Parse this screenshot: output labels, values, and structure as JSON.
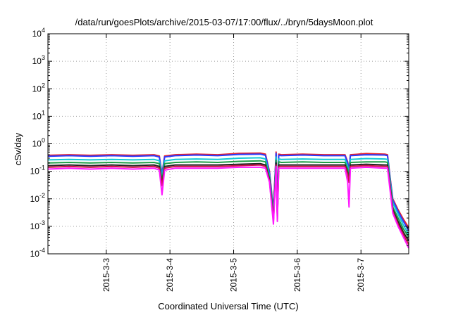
{
  "chart_data": {
    "type": "line",
    "title": "/data/run/goesPlots/archive/2015-03-07/17:00/flux/../bryn/5daysMoon.plot",
    "xlabel": "Coordinated Universal Time (UTC)",
    "ylabel": "cSv/day",
    "yscale": "log",
    "ylim": [
      0.0001,
      10000
    ],
    "y_ticks": [
      {
        "base": "10",
        "exp": "-4",
        "value": 0.0001
      },
      {
        "base": "10",
        "exp": "-3",
        "value": 0.001
      },
      {
        "base": "10",
        "exp": "-2",
        "value": 0.01
      },
      {
        "base": "10",
        "exp": "-1",
        "value": 0.1
      },
      {
        "base": "10",
        "exp": "0",
        "value": 1
      },
      {
        "base": "10",
        "exp": "1",
        "value": 10
      },
      {
        "base": "10",
        "exp": "2",
        "value": 100
      },
      {
        "base": "10",
        "exp": "3",
        "value": 1000
      },
      {
        "base": "10",
        "exp": "4",
        "value": 10000
      }
    ],
    "xlim": [
      "2015-03-02T02:00",
      "2015-03-07T18:00"
    ],
    "x_ticks": [
      {
        "label": "2015-3-3",
        "value": "2015-03-03T00:00"
      },
      {
        "label": "2015-3-4",
        "value": "2015-03-04T00:00"
      },
      {
        "label": "2015-3-5",
        "value": "2015-03-05T00:00"
      },
      {
        "label": "2015-3-6",
        "value": "2015-03-06T00:00"
      },
      {
        "label": "2015-3-7",
        "value": "2015-03-07T00:00"
      }
    ],
    "grid": true,
    "legend": false,
    "x": [
      "2015-03-02T02:00",
      "2015-03-02T10:00",
      "2015-03-02T18:00",
      "2015-03-03T02:00",
      "2015-03-03T10:00",
      "2015-03-03T18:00",
      "2015-03-03T20:00",
      "2015-03-03T21:00",
      "2015-03-03T22:00",
      "2015-03-04T02:00",
      "2015-03-04T10:00",
      "2015-03-04T18:00",
      "2015-03-05T02:00",
      "2015-03-05T10:00",
      "2015-03-05T12:00",
      "2015-03-05T13:30",
      "2015-03-05T15:00",
      "2015-03-05T16:00",
      "2015-03-05T16:30",
      "2015-03-05T17:00",
      "2015-03-05T18:00",
      "2015-03-06T02:00",
      "2015-03-06T10:00",
      "2015-03-06T18:00",
      "2015-03-06T19:00",
      "2015-03-06T19:30",
      "2015-03-06T20:00",
      "2015-03-07T02:00",
      "2015-03-07T09:00",
      "2015-03-07T10:00",
      "2015-03-07T11:00",
      "2015-03-07T12:00",
      "2015-03-07T14:00",
      "2015-03-07T16:00",
      "2015-03-07T18:00"
    ],
    "series": [
      {
        "color": "#e8202a",
        "values": [
          0.38,
          0.4,
          0.38,
          0.4,
          0.38,
          0.4,
          0.36,
          0.08,
          0.36,
          0.4,
          0.42,
          0.4,
          0.45,
          0.46,
          0.42,
          0.1,
          0.004,
          0.5,
          0.005,
          0.42,
          0.4,
          0.42,
          0.4,
          0.4,
          0.22,
          0.12,
          0.4,
          0.44,
          0.42,
          0.4,
          0.06,
          0.01,
          0.004,
          0.0018,
          0.0009
        ]
      },
      {
        "color": "#2a3cff",
        "values": [
          0.35,
          0.37,
          0.35,
          0.37,
          0.35,
          0.37,
          0.33,
          0.075,
          0.33,
          0.37,
          0.39,
          0.37,
          0.41,
          0.42,
          0.38,
          0.09,
          0.0035,
          0.45,
          0.0045,
          0.38,
          0.37,
          0.39,
          0.37,
          0.37,
          0.2,
          0.11,
          0.37,
          0.4,
          0.39,
          0.37,
          0.055,
          0.009,
          0.0035,
          0.0015,
          0.0007
        ]
      },
      {
        "color": "#12c8d8",
        "values": [
          0.26,
          0.27,
          0.26,
          0.27,
          0.26,
          0.27,
          0.24,
          0.06,
          0.24,
          0.27,
          0.28,
          0.27,
          0.3,
          0.31,
          0.28,
          0.07,
          0.0028,
          0.33,
          0.0035,
          0.28,
          0.27,
          0.28,
          0.27,
          0.27,
          0.15,
          0.08,
          0.27,
          0.29,
          0.28,
          0.27,
          0.045,
          0.007,
          0.0028,
          0.0011,
          0.0005
        ]
      },
      {
        "color": "#1e9e46",
        "values": [
          0.2,
          0.21,
          0.2,
          0.21,
          0.2,
          0.21,
          0.19,
          0.045,
          0.19,
          0.21,
          0.22,
          0.21,
          0.23,
          0.24,
          0.22,
          0.06,
          0.0022,
          0.25,
          0.0028,
          0.22,
          0.21,
          0.22,
          0.21,
          0.21,
          0.12,
          0.06,
          0.21,
          0.22,
          0.22,
          0.21,
          0.035,
          0.005,
          0.002,
          0.0008,
          0.0004
        ]
      },
      {
        "color": "#222222",
        "values": [
          0.16,
          0.17,
          0.16,
          0.17,
          0.16,
          0.17,
          0.15,
          0.035,
          0.15,
          0.17,
          0.17,
          0.17,
          0.18,
          0.19,
          0.17,
          0.05,
          0.0018,
          0.2,
          0.0022,
          0.17,
          0.17,
          0.17,
          0.17,
          0.17,
          0.09,
          0.045,
          0.17,
          0.18,
          0.17,
          0.17,
          0.028,
          0.004,
          0.0015,
          0.0006,
          0.0003
        ]
      },
      {
        "color": "#d0104a",
        "values": [
          0.14,
          0.15,
          0.14,
          0.15,
          0.14,
          0.15,
          0.13,
          0.03,
          0.13,
          0.15,
          0.15,
          0.15,
          0.16,
          0.17,
          0.15,
          0.045,
          0.0015,
          0.17,
          0.0018,
          0.15,
          0.15,
          0.15,
          0.15,
          0.15,
          0.08,
          0.04,
          0.15,
          0.16,
          0.15,
          0.15,
          0.025,
          0.0035,
          0.0012,
          0.0005,
          0.00022
        ]
      },
      {
        "color": "#ff19ff",
        "values": [
          0.12,
          0.13,
          0.12,
          0.13,
          0.12,
          0.13,
          0.11,
          0.014,
          0.11,
          0.13,
          0.13,
          0.13,
          0.14,
          0.14,
          0.13,
          0.04,
          0.0012,
          0.15,
          0.0015,
          0.13,
          0.13,
          0.13,
          0.13,
          0.13,
          0.04,
          0.005,
          0.13,
          0.14,
          0.13,
          0.13,
          0.02,
          0.003,
          0.001,
          0.0004,
          0.00016
        ]
      }
    ]
  }
}
